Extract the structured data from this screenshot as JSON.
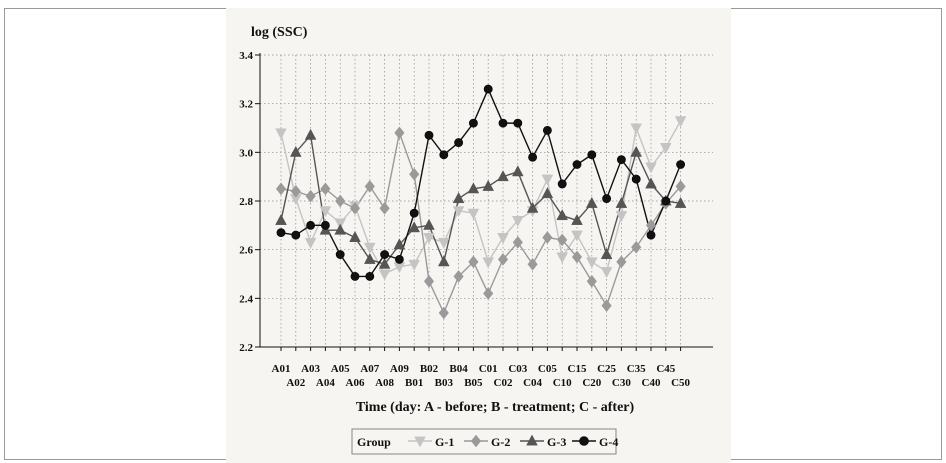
{
  "chart_data": {
    "type": "line",
    "title": "",
    "ylabel": "log (SSC)",
    "xlabel": "Time (day: A - before; B - treatment; C - after)",
    "ylim": [
      2.2,
      3.4
    ],
    "yticks": [
      2.2,
      2.4,
      2.6,
      2.8,
      3.0,
      3.2,
      3.4
    ],
    "ytick_labels": [
      "2.2",
      "2.4",
      "2.6",
      "2.8",
      "3.0",
      "3.2",
      "3.4"
    ],
    "grid": true,
    "legend_title": "Group",
    "legend_position": "bottom",
    "categories": [
      "A01",
      "A02",
      "A03",
      "A04",
      "A05",
      "A06",
      "A07",
      "A08",
      "A09",
      "B01",
      "B02",
      "B03",
      "B04",
      "B05",
      "C01",
      "C02",
      "C03",
      "C04",
      "C05",
      "C10",
      "C15",
      "C20",
      "C25",
      "C30",
      "C35",
      "C40",
      "C45",
      "C50"
    ],
    "series": [
      {
        "name": "G-1",
        "marker": "triangle-down",
        "color": "#c4c4c4",
        "values": [
          3.08,
          2.81,
          2.63,
          2.76,
          2.71,
          2.78,
          2.61,
          2.5,
          2.53,
          2.54,
          2.65,
          2.63,
          2.76,
          2.75,
          2.55,
          2.65,
          2.72,
          2.76,
          2.89,
          2.57,
          2.66,
          2.55,
          2.51,
          2.74,
          3.1,
          2.94,
          3.02,
          3.13
        ]
      },
      {
        "name": "G-2",
        "marker": "diamond",
        "color": "#9a9a9a",
        "values": [
          2.85,
          2.84,
          2.82,
          2.85,
          2.8,
          2.77,
          2.86,
          2.77,
          3.08,
          2.91,
          2.47,
          2.34,
          2.49,
          2.55,
          2.42,
          2.56,
          2.63,
          2.54,
          2.65,
          2.64,
          2.57,
          2.47,
          2.37,
          2.55,
          2.61,
          2.7,
          2.79,
          2.86
        ]
      },
      {
        "name": "G-3",
        "marker": "triangle-up",
        "color": "#555555",
        "values": [
          2.72,
          3.0,
          3.07,
          2.68,
          2.68,
          2.65,
          2.56,
          2.54,
          2.62,
          2.69,
          2.7,
          2.55,
          2.81,
          2.85,
          2.86,
          2.9,
          2.92,
          2.77,
          2.83,
          2.74,
          2.72,
          2.79,
          2.58,
          2.79,
          3.0,
          2.87,
          2.8,
          2.79
        ]
      },
      {
        "name": "G-4",
        "marker": "circle",
        "color": "#111111",
        "values": [
          2.67,
          2.66,
          2.7,
          2.7,
          2.58,
          2.49,
          2.49,
          2.58,
          2.56,
          2.75,
          3.07,
          2.99,
          3.04,
          3.12,
          3.26,
          3.12,
          3.12,
          2.98,
          3.09,
          2.87,
          2.95,
          2.99,
          2.81,
          2.97,
          2.89,
          2.66,
          2.8,
          2.95
        ]
      }
    ]
  }
}
